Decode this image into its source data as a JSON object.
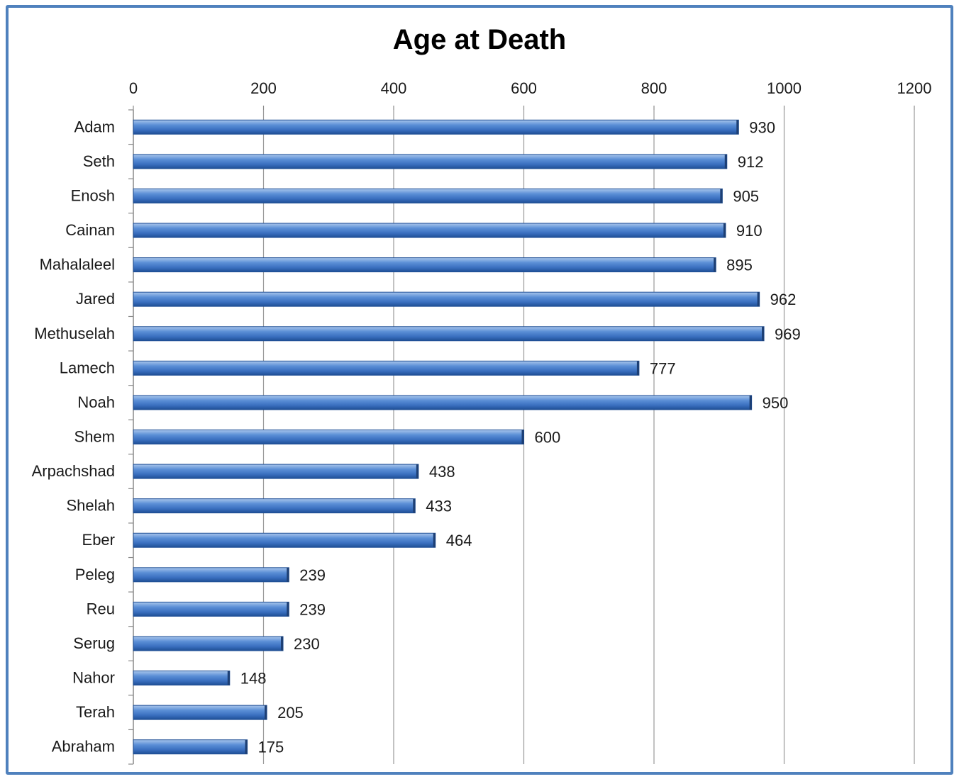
{
  "chart_data": {
    "type": "bar",
    "orientation": "horizontal",
    "title": "Age at Death",
    "categories": [
      "Adam",
      "Seth",
      "Enosh",
      "Cainan",
      "Mahalaleel",
      "Jared",
      "Methuselah",
      "Lamech",
      "Noah",
      "Shem",
      "Arpachshad",
      "Shelah",
      "Eber",
      "Peleg",
      "Reu",
      "Serug",
      "Nahor",
      "Terah",
      "Abraham"
    ],
    "values": [
      930,
      912,
      905,
      910,
      895,
      962,
      969,
      777,
      950,
      600,
      438,
      433,
      464,
      239,
      239,
      230,
      148,
      205,
      175
    ],
    "xlim": [
      0,
      1200
    ],
    "xticks": [
      0,
      200,
      400,
      600,
      800,
      1000,
      1200
    ],
    "x_axis_position": "top",
    "grid": true,
    "data_labels": true,
    "bar_color": "#4f81bd"
  }
}
